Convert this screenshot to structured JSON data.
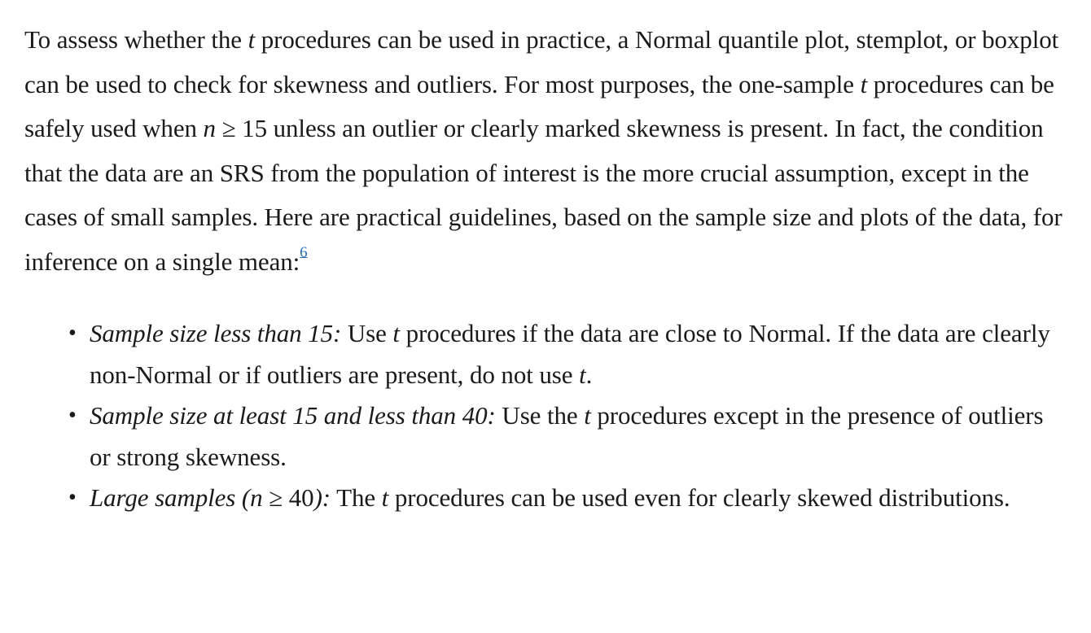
{
  "paragraph": {
    "s1": "To assess whether the ",
    "t1": "t",
    "s2": " procedures can be used in practice, a Normal quantile plot, stemplot, or boxplot can be used to check for skewness and outliers. For most purposes, the one-sample ",
    "t2": "t",
    "s3": " procedures can be safely used when ",
    "n": "n",
    "ge": " ≥ ",
    "fifteen": "15",
    "s4": " unless an outlier or clearly marked skewness is present. In fact, the condition that the data are an SRS from the population of interest is the more crucial assumption, except in the cases of small samples. Here are practical guidelines, based on the sample size and plots of the data, for inference on a single mean:",
    "footnote": "6"
  },
  "bullets": [
    {
      "bullet": "•",
      "lead": "Sample size less than 15:",
      "a": " Use ",
      "t": "t",
      "b": " procedures if the data are close to Normal. If the data are clearly non-Normal or if outliers are present, do not use ",
      "t_end": "t",
      "c": "."
    },
    {
      "bullet": "•",
      "lead": "Sample size at least 15 and less than 40:",
      "a": " Use the ",
      "t": "t",
      "b": " procedures except in the presence of outliers or strong skewness."
    },
    {
      "bullet": "•",
      "lead_a": "Large samples (",
      "n": "n",
      "ge": " ≥ ",
      "forty": "40",
      "lead_b": "):",
      "a": " The ",
      "t": "t",
      "b": " procedures can be used even for clearly skewed distributions."
    }
  ]
}
